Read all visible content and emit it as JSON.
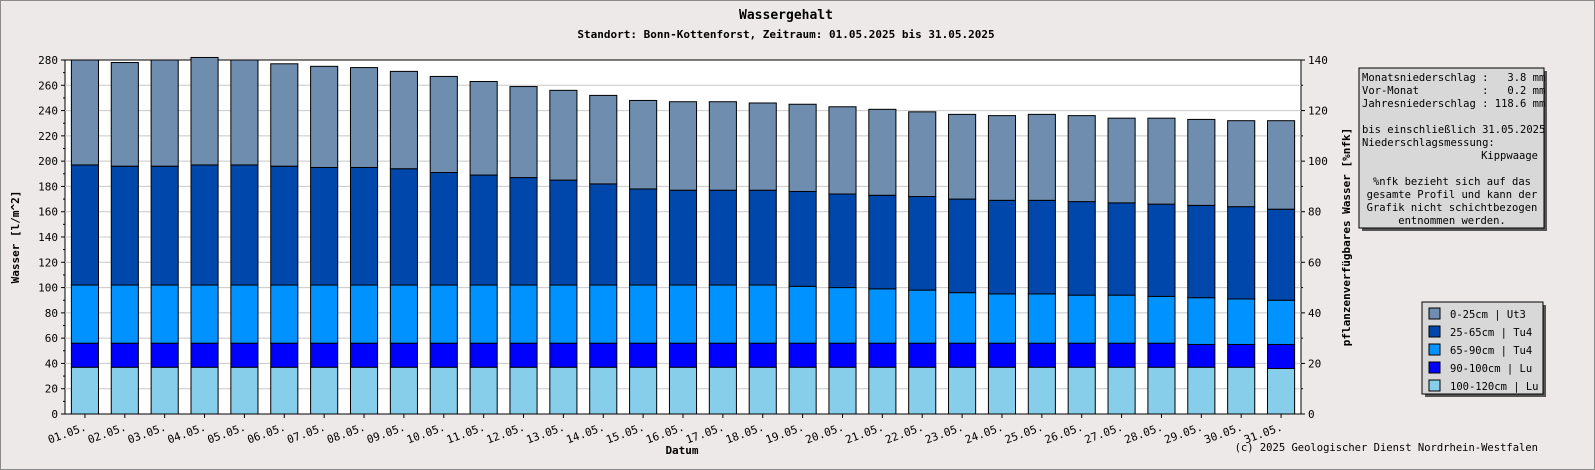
{
  "chart_data": {
    "type": "bar",
    "stacked": true,
    "title": "Wassergehalt",
    "subtitle": "Standort: Bonn-Kottenforst, Zeitraum: 01.05.2025 bis 31.05.2025",
    "xlabel": "Datum",
    "ylabel": "Wasser [l/m^2]",
    "y2label": "pflanzenverfügbares Wasser [%nfk]",
    "ylim": [
      0,
      280
    ],
    "y_ticks": [
      "0",
      "20",
      "40",
      "60",
      "80",
      "100",
      "120",
      "140",
      "160",
      "180",
      "200",
      "220",
      "240",
      "260",
      "280"
    ],
    "y2lim": [
      0,
      140
    ],
    "y2_ticks": [
      "0",
      "20",
      "40",
      "60",
      "80",
      "100",
      "120",
      "140"
    ],
    "grid": true,
    "categories": [
      "01.05.",
      "02.05.",
      "03.05.",
      "04.05.",
      "05.05.",
      "06.05.",
      "07.05.",
      "08.05.",
      "09.05.",
      "10.05.",
      "11.05.",
      "12.05.",
      "13.05.",
      "14.05.",
      "15.05.",
      "16.05.",
      "17.05.",
      "18.05.",
      "19.05.",
      "20.05.",
      "21.05.",
      "22.05.",
      "23.05.",
      "24.05.",
      "25.05.",
      "26.05.",
      "27.05.",
      "28.05.",
      "29.05.",
      "30.05.",
      "31.05."
    ],
    "series": [
      {
        "name": "100-120cm | Lu",
        "color": "#87ceeb",
        "values": [
          37,
          37,
          37,
          37,
          37,
          37,
          37,
          37,
          37,
          37,
          37,
          37,
          37,
          37,
          37,
          37,
          37,
          37,
          37,
          37,
          37,
          37,
          37,
          37,
          37,
          37,
          37,
          37,
          37,
          37,
          36
        ]
      },
      {
        "name": "90-100cm | Lu",
        "color": "#0000ff",
        "values": [
          19,
          19,
          19,
          19,
          19,
          19,
          19,
          19,
          19,
          19,
          19,
          19,
          19,
          19,
          19,
          19,
          19,
          19,
          19,
          19,
          19,
          19,
          19,
          19,
          19,
          19,
          19,
          19,
          18,
          18,
          19
        ]
      },
      {
        "name": "65-90cm | Tu4",
        "color": "#0092ff",
        "values": [
          46,
          46,
          46,
          46,
          46,
          46,
          46,
          46,
          46,
          46,
          46,
          46,
          46,
          46,
          46,
          46,
          46,
          46,
          45,
          44,
          43,
          42,
          40,
          39,
          39,
          38,
          38,
          37,
          37,
          36,
          35
        ]
      },
      {
        "name": "25-65cm | Tu4",
        "color": "#0047ab",
        "values": [
          95,
          94,
          94,
          95,
          95,
          94,
          93,
          93,
          92,
          89,
          87,
          85,
          83,
          80,
          76,
          75,
          75,
          75,
          75,
          74,
          74,
          74,
          74,
          74,
          74,
          74,
          73,
          73,
          73,
          73,
          72
        ]
      },
      {
        "name": "0-25cm | Ut3",
        "color": "#6e8daf",
        "values": [
          83,
          82,
          84,
          85,
          83,
          81,
          80,
          79,
          77,
          76,
          74,
          72,
          71,
          70,
          70,
          70,
          70,
          69,
          69,
          69,
          68,
          67,
          67,
          67,
          68,
          68,
          67,
          68,
          68,
          68,
          70
        ]
      }
    ],
    "legend": {
      "position": "right"
    }
  },
  "info_box": {
    "lines": [
      "Monatsniederschlag :   3.8 mm",
      "Vor-Monat          :   0.2 mm",
      "Jahresniederschlag : 118.6 mm",
      "",
      "bis einschließlich 31.05.2025",
      "Niederschlagsmessung:"
    ],
    "station": "Kippwaage",
    "note": [
      "%nfk bezieht sich auf das",
      "gesamte Profil und kann der",
      "Grafik nicht schichtbezogen",
      "entnommen werden."
    ]
  },
  "credit": "(c) 2025 Geologischer Dienst Nordrhein-Westfalen"
}
